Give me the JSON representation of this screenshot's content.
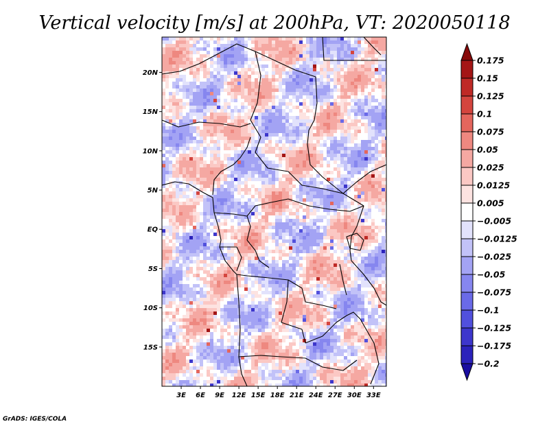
{
  "chart_data": {
    "type": "heatmap",
    "title": "Vertical velocity [m/s] at 200hPa, VT: 2020050118",
    "variable": "Vertical velocity",
    "units": "m/s",
    "level": "200hPa",
    "valid_time": "2020050118",
    "x_axis": {
      "range": [
        0,
        35
      ],
      "ticks": [
        3,
        6,
        9,
        12,
        15,
        18,
        21,
        24,
        27,
        30,
        33
      ],
      "tick_labels": [
        "3E",
        "6E",
        "9E",
        "12E",
        "15E",
        "18E",
        "21E",
        "24E",
        "27E",
        "30E",
        "33E"
      ]
    },
    "y_axis": {
      "range": [
        -20,
        24.5
      ],
      "ticks": [
        20,
        15,
        10,
        5,
        0,
        -5,
        -10,
        -15
      ],
      "tick_labels": [
        "20N",
        "15N",
        "10N",
        "5N",
        "EQ",
        "5S",
        "10S",
        "15S"
      ]
    },
    "colorbar": {
      "levels": [
        -0.2,
        -0.175,
        -0.125,
        -0.1,
        -0.075,
        -0.05,
        -0.025,
        -0.0125,
        -0.005,
        0.005,
        0.0125,
        0.025,
        0.05,
        0.075,
        0.1,
        0.125,
        0.15,
        0.175
      ],
      "labels": [
        "0.175",
        "0.15",
        "0.125",
        "0.1",
        "0.075",
        "0.05",
        "0.025",
        "0.0125",
        "0.005",
        "−0.005",
        "−0.0125",
        "−0.025",
        "−0.05",
        "−0.075",
        "−0.1",
        "−0.125",
        "−0.175",
        "−0.2"
      ],
      "colors": [
        "#1a0ea0",
        "#2b22bb",
        "#3d36cc",
        "#5150dd",
        "#6a6ae8",
        "#8686ef",
        "#a3a3f4",
        "#c2c2f8",
        "#e2e2fc",
        "#ffffff",
        "#fde3e1",
        "#fbc8c4",
        "#f5a8a2",
        "#ee8880",
        "#e4665d",
        "#d4453e",
        "#bf2a26",
        "#a41616",
        "#870a0a"
      ],
      "extend": "both"
    },
    "borders": true,
    "coastlines": true
  },
  "credit": "GrADS: IGES/COLA"
}
